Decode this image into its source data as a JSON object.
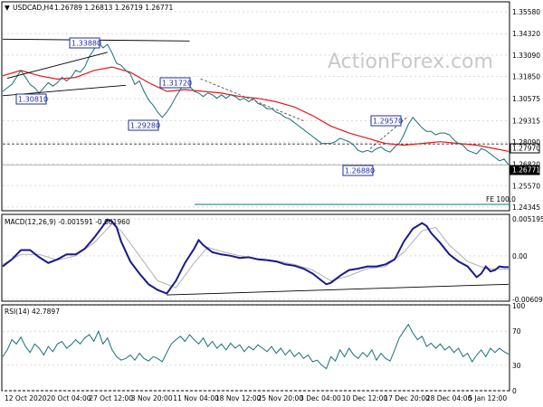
{
  "header": {
    "symbol": "USDCAD,H4",
    "ohlc": "1.26789 1.26813 1.26719 1.26771"
  },
  "watermark": "ActionForex.com",
  "panes": {
    "main": {
      "ylabels": [
        "1.35580",
        "1.34320",
        "1.33090",
        "1.31850",
        "1.30575",
        "1.29315",
        "1.28090",
        "1.26820",
        "1.25570",
        "1.24345"
      ],
      "grid_values": [
        1.3558,
        1.3432,
        1.3309,
        1.3185,
        1.30575,
        1.29315,
        1.2809,
        1.2682,
        1.2557,
        1.24345
      ]
    },
    "macd": {
      "title": "MACD(12,26,9) -0.001591 -0.001960",
      "ylabels": [
        "0.005195",
        "0.00",
        "-0.006093"
      ],
      "grid_values": [
        0.005195,
        0.0,
        -0.006093
      ]
    },
    "rsi": {
      "title": "RSI(14) 42.7897",
      "ylabels": [
        "100",
        "70",
        "30",
        "0"
      ],
      "grid_values": [
        100,
        70,
        30,
        0
      ]
    }
  },
  "time_labels": [
    "12 Oct 2020",
    "20 Oct 04:00",
    "27 Oct 12:00",
    "3 Nov 20:00",
    "11 Nov 04:00",
    "18 Nov 12:00",
    "25 Nov 20:00",
    "3 Dec 04:00",
    "10 Dec 12:00",
    "17 Dec 20:00",
    "28 Dec 04:00",
    "5 Jan 12:00"
  ],
  "levels": {
    "dashed_level": "1.27970",
    "current": "1.26771",
    "fe_label": "FE 100.0"
  },
  "annotations": [
    "1.33880",
    "1.30810",
    "1.31720",
    "1.29280",
    "1.29570",
    "1.26880"
  ],
  "chart_data": {
    "type": "line",
    "title": "USDCAD,H4",
    "price_range": [
      1.2418,
      1.361
    ],
    "price_series": [
      [
        0,
        1.31
      ],
      [
        5,
        1.312
      ],
      [
        10,
        1.314
      ],
      [
        15,
        1.318
      ],
      [
        20,
        1.322
      ],
      [
        25,
        1.318
      ],
      [
        30,
        1.314
      ],
      [
        35,
        1.312
      ],
      [
        40,
        1.309
      ],
      [
        45,
        1.312
      ],
      [
        50,
        1.315
      ],
      [
        55,
        1.313
      ],
      [
        60,
        1.315
      ],
      [
        65,
        1.318
      ],
      [
        70,
        1.316
      ],
      [
        75,
        1.318
      ],
      [
        80,
        1.322
      ],
      [
        85,
        1.321
      ],
      [
        90,
        1.324
      ],
      [
        95,
        1.33
      ],
      [
        100,
        1.334
      ],
      [
        105,
        1.338
      ],
      [
        110,
        1.335
      ],
      [
        115,
        1.337
      ],
      [
        120,
        1.332
      ],
      [
        125,
        1.326
      ],
      [
        130,
        1.325
      ],
      [
        135,
        1.322
      ],
      [
        140,
        1.32
      ],
      [
        145,
        1.314
      ],
      [
        150,
        1.316
      ],
      [
        155,
        1.31
      ],
      [
        160,
        1.305
      ],
      [
        165,
        1.302
      ],
      [
        170,
        1.298
      ],
      [
        175,
        1.295
      ],
      [
        180,
        1.298
      ],
      [
        185,
        1.302
      ],
      [
        190,
        1.307
      ],
      [
        195,
        1.311
      ],
      [
        200,
        1.316
      ],
      [
        205,
        1.313
      ],
      [
        210,
        1.31
      ],
      [
        215,
        1.309
      ],
      [
        220,
        1.307
      ],
      [
        225,
        1.309
      ],
      [
        230,
        1.308
      ],
      [
        235,
        1.306
      ],
      [
        240,
        1.308
      ],
      [
        245,
        1.306
      ],
      [
        250,
        1.308
      ],
      [
        255,
        1.307
      ],
      [
        260,
        1.305
      ],
      [
        265,
        1.306
      ],
      [
        270,
        1.304
      ],
      [
        275,
        1.306
      ],
      [
        280,
        1.303
      ],
      [
        285,
        1.302
      ],
      [
        290,
        1.3
      ],
      [
        295,
        1.3
      ],
      [
        300,
        1.298
      ],
      [
        305,
        1.297
      ],
      [
        310,
        1.295
      ],
      [
        315,
        1.294
      ],
      [
        320,
        1.292
      ],
      [
        325,
        1.29
      ],
      [
        330,
        1.288
      ],
      [
        335,
        1.286
      ],
      [
        340,
        1.284
      ],
      [
        345,
        1.282
      ],
      [
        350,
        1.28
      ],
      [
        355,
        1.28
      ],
      [
        360,
        1.28
      ],
      [
        365,
        1.281
      ],
      [
        370,
        1.283
      ],
      [
        375,
        1.282
      ],
      [
        380,
        1.281
      ],
      [
        385,
        1.279
      ],
      [
        390,
        1.276
      ],
      [
        395,
        1.275
      ],
      [
        400,
        1.276
      ],
      [
        405,
        1.275
      ],
      [
        410,
        1.277
      ],
      [
        415,
        1.278
      ],
      [
        420,
        1.276
      ],
      [
        425,
        1.275
      ],
      [
        430,
        1.278
      ],
      [
        435,
        1.28
      ],
      [
        440,
        1.285
      ],
      [
        445,
        1.291
      ],
      [
        450,
        1.295
      ],
      [
        455,
        1.292
      ],
      [
        460,
        1.289
      ],
      [
        465,
        1.287
      ],
      [
        470,
        1.287
      ],
      [
        475,
        1.285
      ],
      [
        480,
        1.286
      ],
      [
        485,
        1.286
      ],
      [
        490,
        1.285
      ],
      [
        495,
        1.282
      ],
      [
        500,
        1.28
      ],
      [
        505,
        1.279
      ],
      [
        510,
        1.276
      ],
      [
        515,
        1.275
      ],
      [
        520,
        1.274
      ],
      [
        525,
        1.277
      ],
      [
        530,
        1.276
      ],
      [
        535,
        1.274
      ],
      [
        540,
        1.272
      ],
      [
        545,
        1.27
      ],
      [
        550,
        1.271
      ],
      [
        555,
        1.2677
      ]
    ],
    "ema_series": [
      [
        0,
        1.319
      ],
      [
        20,
        1.322
      ],
      [
        40,
        1.319
      ],
      [
        60,
        1.317
      ],
      [
        80,
        1.318
      ],
      [
        100,
        1.322
      ],
      [
        120,
        1.324
      ],
      [
        140,
        1.321
      ],
      [
        160,
        1.315
      ],
      [
        180,
        1.31
      ],
      [
        200,
        1.311
      ],
      [
        220,
        1.31
      ],
      [
        240,
        1.309
      ],
      [
        260,
        1.307
      ],
      [
        280,
        1.306
      ],
      [
        300,
        1.304
      ],
      [
        320,
        1.301
      ],
      [
        340,
        1.296
      ],
      [
        360,
        1.29
      ],
      [
        380,
        1.286
      ],
      [
        400,
        1.283
      ],
      [
        420,
        1.28
      ],
      [
        440,
        1.279
      ],
      [
        460,
        1.28
      ],
      [
        480,
        1.281
      ],
      [
        500,
        1.28
      ],
      [
        520,
        1.279
      ],
      [
        540,
        1.277
      ],
      [
        555,
        1.2755
      ]
    ],
    "trendlines": [
      {
        "points": [
          [
            0,
            1.34
          ],
          [
            205,
            1.339
          ]
        ]
      },
      {
        "points": [
          [
            0,
            1.3075
          ],
          [
            135,
            1.3135
          ]
        ]
      },
      {
        "points": [
          [
            5,
            1.3175
          ],
          [
            115,
            1.3325
          ]
        ]
      },
      {
        "points": [
          [
            217,
            1.3172
          ],
          [
            330,
            1.293
          ]
        ]
      },
      {
        "points": [
          [
            403,
            1.277
          ],
          [
            445,
            1.2957
          ]
        ]
      }
    ],
    "macd_range": [
      -0.00625,
      0.0057
    ],
    "macd_series": [
      [
        0,
        -0.0015
      ],
      [
        10,
        -0.0005
      ],
      [
        20,
        0.0008
      ],
      [
        30,
        0.0008
      ],
      [
        40,
        -0.0002
      ],
      [
        50,
        -0.001
      ],
      [
        60,
        -0.0005
      ],
      [
        70,
        0.0002
      ],
      [
        80,
        0.0002
      ],
      [
        90,
        0.001
      ],
      [
        100,
        0.0025
      ],
      [
        110,
        0.0042
      ],
      [
        115,
        0.0051
      ],
      [
        120,
        0.0048
      ],
      [
        125,
        0.004
      ],
      [
        130,
        0.002
      ],
      [
        140,
        -0.0008
      ],
      [
        150,
        -0.0025
      ],
      [
        160,
        -0.004
      ],
      [
        170,
        -0.0048
      ],
      [
        180,
        -0.0053
      ],
      [
        190,
        -0.0035
      ],
      [
        200,
        -0.001
      ],
      [
        210,
        0.001
      ],
      [
        215,
        0.0022
      ],
      [
        220,
        0.0015
      ],
      [
        230,
        0.0005
      ],
      [
        240,
        0.0002
      ],
      [
        250,
        0.0
      ],
      [
        260,
        -0.0003
      ],
      [
        270,
        -0.0002
      ],
      [
        280,
        -0.0005
      ],
      [
        290,
        -0.0006
      ],
      [
        300,
        -0.0008
      ],
      [
        310,
        -0.0012
      ],
      [
        320,
        -0.0014
      ],
      [
        330,
        -0.0018
      ],
      [
        340,
        -0.0025
      ],
      [
        350,
        -0.0035
      ],
      [
        355,
        -0.004
      ],
      [
        360,
        -0.0038
      ],
      [
        370,
        -0.0028
      ],
      [
        380,
        -0.002
      ],
      [
        390,
        -0.0018
      ],
      [
        400,
        -0.0015
      ],
      [
        410,
        -0.0015
      ],
      [
        420,
        -0.0012
      ],
      [
        430,
        -0.0005
      ],
      [
        440,
        0.002
      ],
      [
        450,
        0.0038
      ],
      [
        460,
        0.0046
      ],
      [
        465,
        0.0042
      ],
      [
        470,
        0.0032
      ],
      [
        480,
        0.0018
      ],
      [
        490,
        0.0002
      ],
      [
        500,
        -0.0008
      ],
      [
        510,
        -0.0015
      ],
      [
        520,
        -0.003
      ],
      [
        525,
        -0.0025
      ],
      [
        530,
        -0.0015
      ],
      [
        535,
        -0.0022
      ],
      [
        540,
        -0.002
      ],
      [
        545,
        -0.0015
      ],
      [
        550,
        -0.0016
      ],
      [
        555,
        -0.0016
      ]
    ],
    "signal_series": [
      [
        0,
        -0.0012
      ],
      [
        20,
        0.0002
      ],
      [
        40,
        0.0002
      ],
      [
        60,
        -0.0006
      ],
      [
        80,
        0.0
      ],
      [
        100,
        0.0018
      ],
      [
        120,
        0.0045
      ],
      [
        130,
        0.0035
      ],
      [
        150,
        0.0
      ],
      [
        170,
        -0.0035
      ],
      [
        190,
        -0.0045
      ],
      [
        210,
        -0.001
      ],
      [
        225,
        0.0012
      ],
      [
        240,
        0.0006
      ],
      [
        260,
        0.0
      ],
      [
        280,
        -0.0004
      ],
      [
        300,
        -0.0007
      ],
      [
        320,
        -0.0012
      ],
      [
        340,
        -0.002
      ],
      [
        360,
        -0.0035
      ],
      [
        380,
        -0.0028
      ],
      [
        400,
        -0.0018
      ],
      [
        420,
        -0.0015
      ],
      [
        440,
        0.0005
      ],
      [
        460,
        0.0035
      ],
      [
        475,
        0.004
      ],
      [
        490,
        0.0015
      ],
      [
        510,
        -0.0008
      ],
      [
        530,
        -0.0018
      ],
      [
        555,
        -0.0019
      ]
    ],
    "macd_trendline": [
      [
        180,
        -0.0055
      ],
      [
        555,
        -0.004
      ]
    ],
    "rsi_range": [
      0,
      100
    ],
    "rsi_series": [
      [
        0,
        40
      ],
      [
        5,
        48
      ],
      [
        10,
        60
      ],
      [
        15,
        55
      ],
      [
        20,
        63
      ],
      [
        25,
        52
      ],
      [
        30,
        45
      ],
      [
        35,
        55
      ],
      [
        40,
        50
      ],
      [
        45,
        42
      ],
      [
        50,
        52
      ],
      [
        55,
        46
      ],
      [
        60,
        55
      ],
      [
        65,
        58
      ],
      [
        70,
        50
      ],
      [
        75,
        54
      ],
      [
        80,
        60
      ],
      [
        85,
        55
      ],
      [
        90,
        62
      ],
      [
        95,
        66
      ],
      [
        100,
        58
      ],
      [
        105,
        70
      ],
      [
        110,
        55
      ],
      [
        115,
        62
      ],
      [
        120,
        48
      ],
      [
        125,
        40
      ],
      [
        130,
        36
      ],
      [
        135,
        38
      ],
      [
        140,
        42
      ],
      [
        145,
        36
      ],
      [
        150,
        44
      ],
      [
        155,
        38
      ],
      [
        160,
        35
      ],
      [
        165,
        40
      ],
      [
        170,
        38
      ],
      [
        175,
        34
      ],
      [
        180,
        45
      ],
      [
        185,
        55
      ],
      [
        190,
        60
      ],
      [
        195,
        64
      ],
      [
        200,
        58
      ],
      [
        205,
        66
      ],
      [
        210,
        60
      ],
      [
        215,
        55
      ],
      [
        220,
        62
      ],
      [
        225,
        52
      ],
      [
        230,
        58
      ],
      [
        235,
        50
      ],
      [
        240,
        55
      ],
      [
        245,
        48
      ],
      [
        250,
        56
      ],
      [
        255,
        50
      ],
      [
        260,
        54
      ],
      [
        265,
        46
      ],
      [
        270,
        52
      ],
      [
        275,
        48
      ],
      [
        280,
        54
      ],
      [
        285,
        50
      ],
      [
        290,
        46
      ],
      [
        295,
        52
      ],
      [
        300,
        44
      ],
      [
        305,
        50
      ],
      [
        310,
        42
      ],
      [
        315,
        48
      ],
      [
        320,
        40
      ],
      [
        325,
        45
      ],
      [
        330,
        38
      ],
      [
        335,
        42
      ],
      [
        340,
        34
      ],
      [
        345,
        36
      ],
      [
        350,
        30
      ],
      [
        355,
        26
      ],
      [
        360,
        40
      ],
      [
        365,
        35
      ],
      [
        370,
        48
      ],
      [
        375,
        40
      ],
      [
        380,
        50
      ],
      [
        385,
        42
      ],
      [
        390,
        38
      ],
      [
        395,
        45
      ],
      [
        400,
        40
      ],
      [
        405,
        48
      ],
      [
        410,
        36
      ],
      [
        415,
        44
      ],
      [
        420,
        38
      ],
      [
        425,
        35
      ],
      [
        430,
        48
      ],
      [
        435,
        62
      ],
      [
        440,
        70
      ],
      [
        445,
        78
      ],
      [
        450,
        68
      ],
      [
        455,
        60
      ],
      [
        460,
        64
      ],
      [
        465,
        52
      ],
      [
        470,
        56
      ],
      [
        475,
        50
      ],
      [
        480,
        55
      ],
      [
        485,
        48
      ],
      [
        490,
        52
      ],
      [
        495,
        45
      ],
      [
        500,
        50
      ],
      [
        505,
        40
      ],
      [
        510,
        44
      ],
      [
        515,
        34
      ],
      [
        520,
        42
      ],
      [
        525,
        48
      ],
      [
        530,
        40
      ],
      [
        535,
        50
      ],
      [
        540,
        45
      ],
      [
        545,
        50
      ],
      [
        550,
        46
      ],
      [
        555,
        43
      ]
    ]
  }
}
